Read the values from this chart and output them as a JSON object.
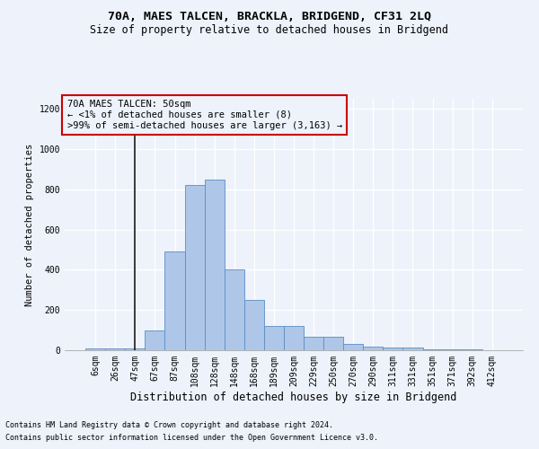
{
  "title1": "70A, MAES TALCEN, BRACKLA, BRIDGEND, CF31 2LQ",
  "title2": "Size of property relative to detached houses in Bridgend",
  "xlabel": "Distribution of detached houses by size in Bridgend",
  "ylabel": "Number of detached properties",
  "footnote1": "Contains HM Land Registry data © Crown copyright and database right 2024.",
  "footnote2": "Contains public sector information licensed under the Open Government Licence v3.0.",
  "annotation_line1": "70A MAES TALCEN: 50sqm",
  "annotation_line2": "← <1% of detached houses are smaller (8)",
  "annotation_line3": ">99% of semi-detached houses are larger (3,163) →",
  "bar_color": "#aec6e8",
  "bar_edge_color": "#5b8ec4",
  "vline_color": "#1a1a1a",
  "annotation_box_color": "#cc0000",
  "ylim": [
    0,
    1250
  ],
  "yticks": [
    0,
    200,
    400,
    600,
    800,
    1000,
    1200
  ],
  "categories": [
    "6sqm",
    "26sqm",
    "47sqm",
    "67sqm",
    "87sqm",
    "108sqm",
    "128sqm",
    "148sqm",
    "168sqm",
    "189sqm",
    "209sqm",
    "229sqm",
    "250sqm",
    "270sqm",
    "290sqm",
    "311sqm",
    "331sqm",
    "351sqm",
    "371sqm",
    "392sqm",
    "412sqm"
  ],
  "values": [
    10,
    10,
    10,
    100,
    490,
    820,
    850,
    400,
    250,
    120,
    120,
    65,
    65,
    30,
    20,
    15,
    15,
    5,
    5,
    5,
    0
  ],
  "vline_x_index": 2,
  "background_color": "#edf2fb",
  "grid_color": "#ffffff",
  "title1_fontsize": 9.5,
  "title2_fontsize": 8.5,
  "xlabel_fontsize": 8.5,
  "ylabel_fontsize": 7.5,
  "tick_fontsize": 7,
  "footnote_fontsize": 6,
  "annotation_fontsize": 7.5
}
